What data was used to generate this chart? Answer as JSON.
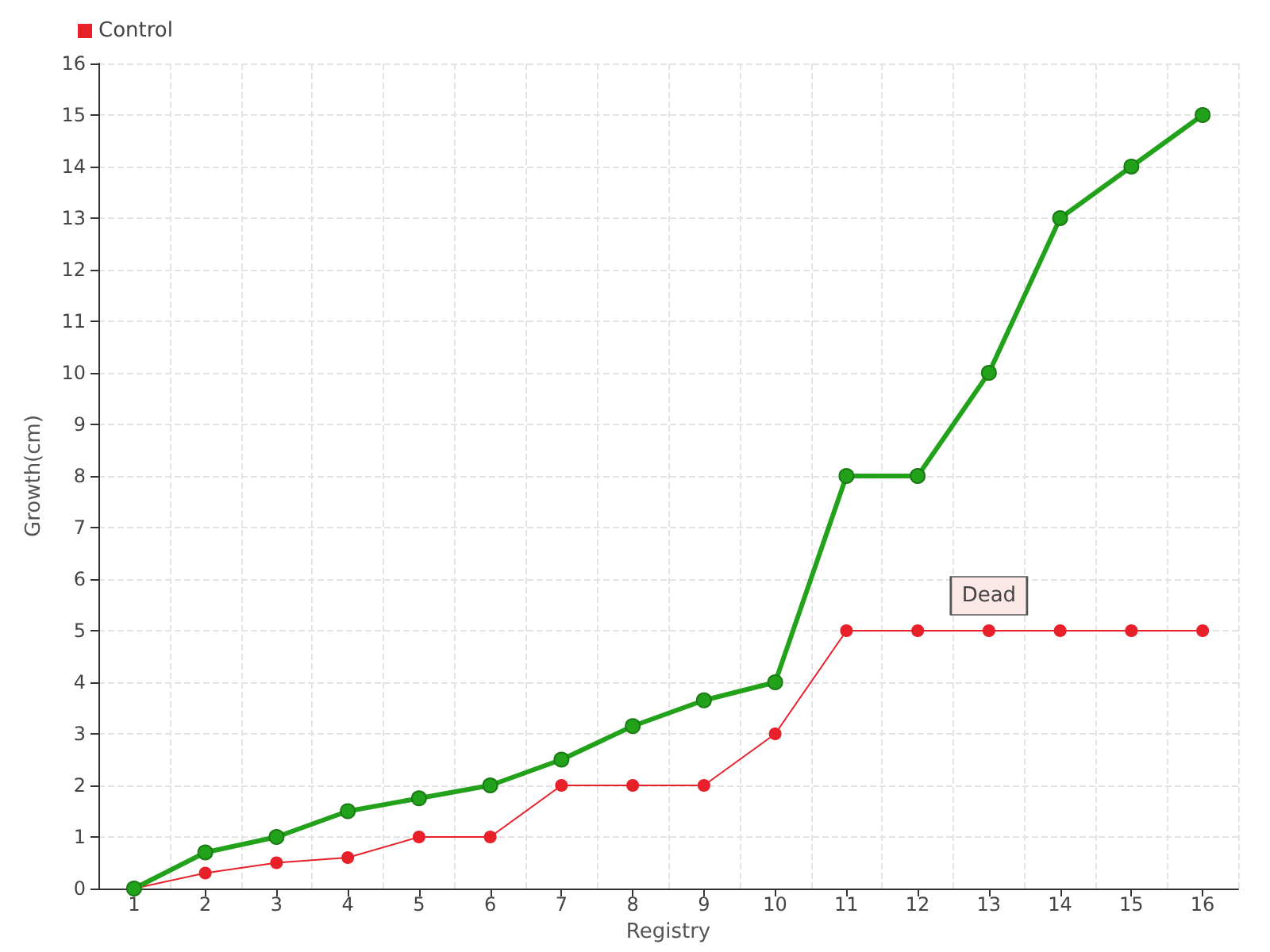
{
  "chart_data": {
    "type": "line",
    "xlabel": "Registry",
    "ylabel": "Growth(cm)",
    "categories": [
      "1",
      "2",
      "3",
      "4",
      "5",
      "6",
      "7",
      "8",
      "9",
      "10",
      "11",
      "12",
      "13",
      "14",
      "15",
      "16"
    ],
    "series": [
      {
        "color": "#22a11a",
        "values": [
          0,
          0.7,
          1,
          1.5,
          1.75,
          2,
          2.5,
          3.15,
          3.65,
          4,
          8,
          8,
          10,
          13,
          14,
          15
        ]
      },
      {
        "name": "Control",
        "color": "#e8202a",
        "values": [
          0,
          0.3,
          0.5,
          0.6,
          1,
          1,
          2,
          2,
          2,
          3,
          5,
          5,
          5,
          5,
          5,
          5
        ]
      }
    ],
    "ylim": [
      0,
      16
    ],
    "yticks": [
      0,
      1,
      2,
      3,
      4,
      5,
      6,
      7,
      8,
      9,
      10,
      11,
      12,
      13,
      14,
      15,
      16
    ],
    "annotations": [
      {
        "text": "Dead",
        "x": "13",
        "y": 5
      }
    ],
    "grid": true,
    "legend": "top left",
    "marker": "circle",
    "line_style": "solid"
  }
}
